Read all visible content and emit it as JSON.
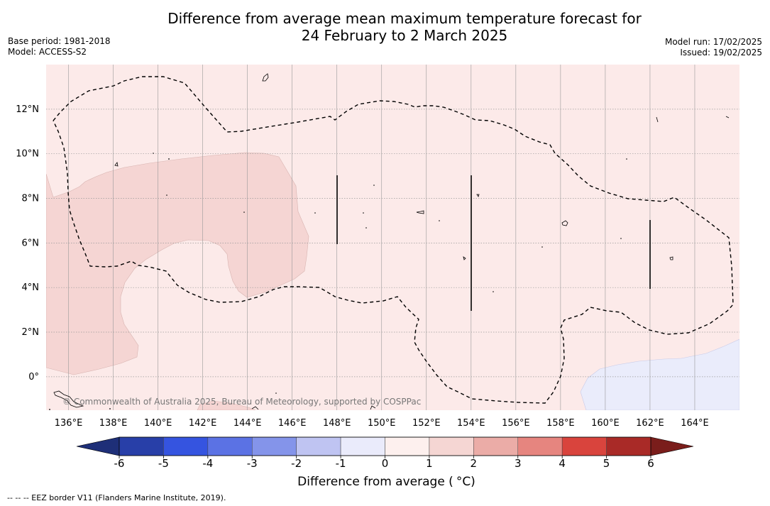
{
  "title": {
    "line1": "Difference from average mean maximum temperature forecast for",
    "line2": "24 February to 2 March 2025"
  },
  "meta_left": {
    "base_period": "Base period: 1981-2018",
    "model": "Model: ACCESS-S2"
  },
  "meta_right": {
    "model_run": "Model run: 17/02/2025",
    "issued": "Issued: 19/02/2025"
  },
  "map": {
    "lon_range": [
      135,
      166
    ],
    "lat_range": [
      -1.5,
      14
    ],
    "lon_ticks": [
      "136°E",
      "138°E",
      "140°E",
      "142°E",
      "144°E",
      "146°E",
      "148°E",
      "150°E",
      "152°E",
      "154°E",
      "156°E",
      "158°E",
      "160°E",
      "162°E",
      "164°E"
    ],
    "lat_ticks": [
      "12°N",
      "10°N",
      "8°N",
      "6°N",
      "4°N",
      "2°N",
      "0°"
    ],
    "background_class": "0 to 1",
    "colors": {
      "class_0_1": "#fceae9",
      "class_1_2": "#f5d5d3",
      "class_m1_0": "#eaecfb",
      "grid": "#999999"
    },
    "watermark": "© Commonwealth of Australia 2025, Bureau of Meteorology, supported by COSPPac"
  },
  "colorbar": {
    "ticks": [
      "-6",
      "-5",
      "-4",
      "-3",
      "-2",
      "-1",
      "0",
      "1",
      "2",
      "3",
      "4",
      "5",
      "6"
    ],
    "bin_colors": [
      "#283fa8",
      "#3554e0",
      "#5b72e4",
      "#8494ea",
      "#bfc4f2",
      "#eaebfb",
      "#fdf0ee",
      "#f5d6d3",
      "#ebaca7",
      "#e6857f",
      "#d9443d",
      "#a92a27"
    ],
    "under_color": "#1e2f78",
    "over_color": "#7a1d1b",
    "label": "Difference from average (",
    "label_unit": "°C)"
  },
  "footer": "--  --  -- EEZ border V11 (Flanders Marine Institute, 2019)."
}
